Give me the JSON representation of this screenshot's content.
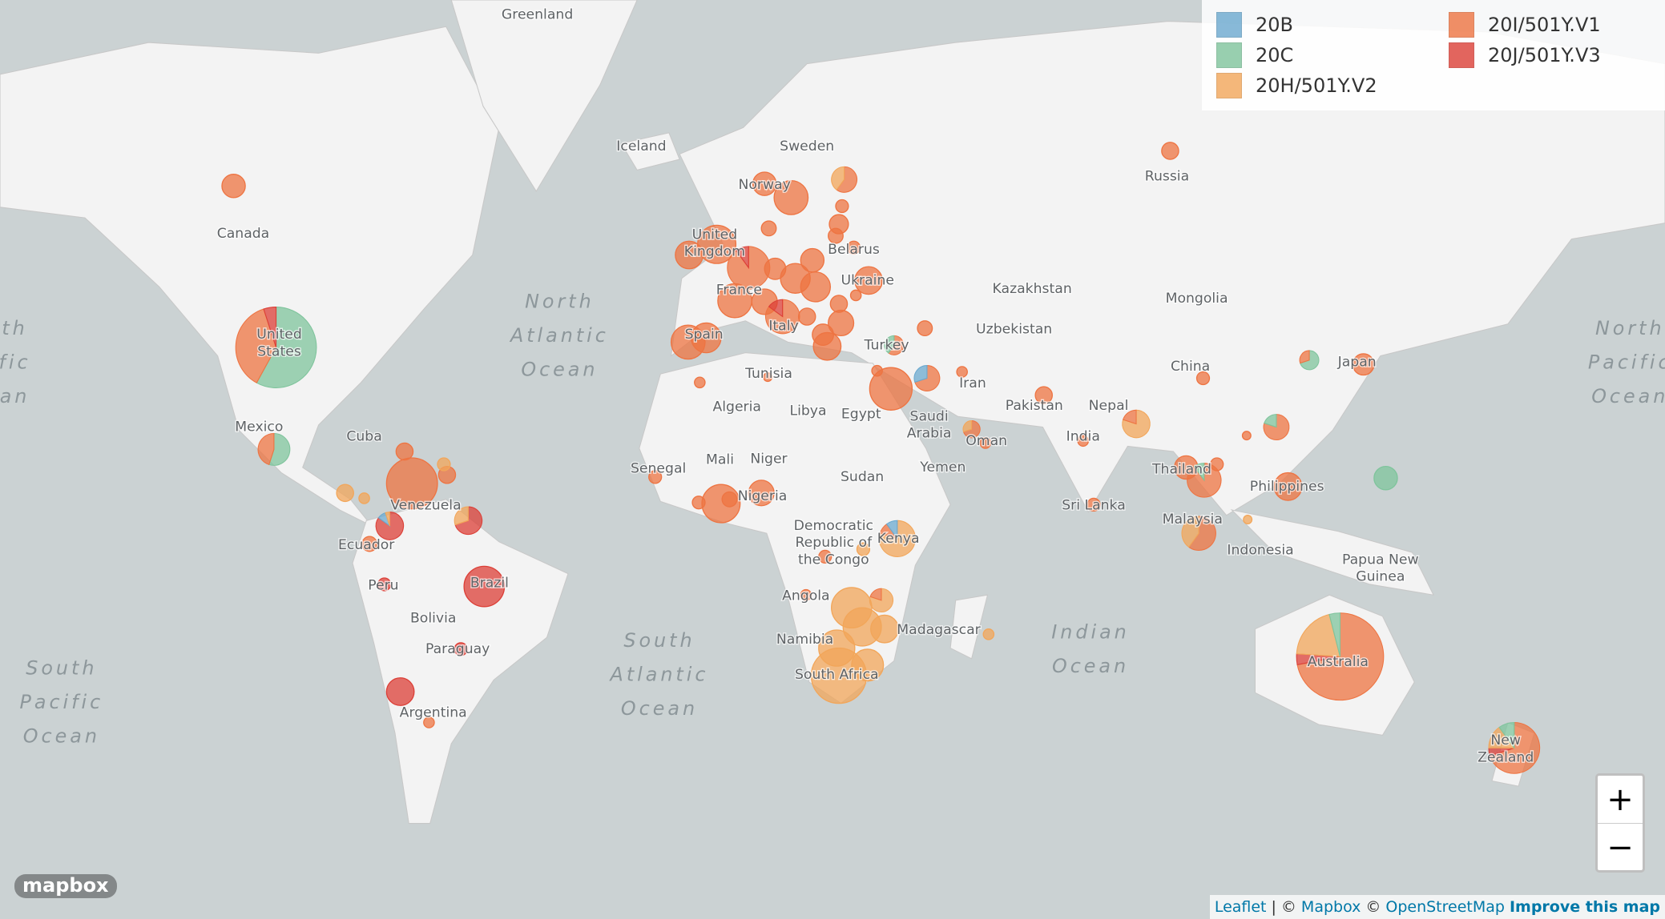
{
  "legend": {
    "items": [
      {
        "label": "20B",
        "color": "#6ba9cf"
      },
      {
        "label": "20C",
        "color": "#7fc49c"
      },
      {
        "label": "20H/501Y.V2",
        "color": "#f2a65a"
      },
      {
        "label": "20I/501Y.V1",
        "color": "#ee7442"
      },
      {
        "label": "20J/501Y.V3",
        "color": "#dc3f37"
      }
    ]
  },
  "map_labels": [
    {
      "lines": [
        "Greenland"
      ]
    },
    {
      "lines": [
        "Iceland"
      ]
    },
    {
      "lines": [
        "Sweden"
      ]
    },
    {
      "lines": [
        "Norway"
      ]
    },
    {
      "lines": [
        "Russia"
      ]
    },
    {
      "lines": [
        "Canada"
      ]
    },
    {
      "lines": [
        "United",
        "States"
      ]
    },
    {
      "lines": [
        "Mexico"
      ]
    },
    {
      "lines": [
        "Cuba"
      ]
    },
    {
      "lines": [
        "Venezuela"
      ]
    },
    {
      "lines": [
        "Ecuador"
      ]
    },
    {
      "lines": [
        "Peru"
      ]
    },
    {
      "lines": [
        "Bolivia"
      ]
    },
    {
      "lines": [
        "Brazil"
      ]
    },
    {
      "lines": [
        "Paraguay"
      ]
    },
    {
      "lines": [
        "Argentina"
      ]
    },
    {
      "lines": [
        "United",
        "Kingdom"
      ]
    },
    {
      "lines": [
        "France"
      ]
    },
    {
      "lines": [
        "Spain"
      ]
    },
    {
      "lines": [
        "Italy"
      ]
    },
    {
      "lines": [
        "Belarus"
      ]
    },
    {
      "lines": [
        "Ukraine"
      ]
    },
    {
      "lines": [
        "Turkey"
      ]
    },
    {
      "lines": [
        "Tunisia"
      ]
    },
    {
      "lines": [
        "Algeria"
      ]
    },
    {
      "lines": [
        "Libya"
      ]
    },
    {
      "lines": [
        "Egypt"
      ]
    },
    {
      "lines": [
        "Saudi",
        "Arabia"
      ]
    },
    {
      "lines": [
        "Yemen"
      ]
    },
    {
      "lines": [
        "Oman"
      ]
    },
    {
      "lines": [
        "Iran"
      ]
    },
    {
      "lines": [
        "Mali"
      ]
    },
    {
      "lines": [
        "Niger"
      ]
    },
    {
      "lines": [
        "Sudan"
      ]
    },
    {
      "lines": [
        "Senegal"
      ]
    },
    {
      "lines": [
        "Nigeria"
      ]
    },
    {
      "lines": [
        "Democratic",
        "Republic of",
        "the Congo"
      ]
    },
    {
      "lines": [
        "Kenya"
      ]
    },
    {
      "lines": [
        "Angola"
      ]
    },
    {
      "lines": [
        "Namibia"
      ]
    },
    {
      "lines": [
        "Madagascar"
      ]
    },
    {
      "lines": [
        "South Africa"
      ]
    },
    {
      "lines": [
        "Kazakhstan"
      ]
    },
    {
      "lines": [
        "Mongolia"
      ]
    },
    {
      "lines": [
        "Uzbekistan"
      ]
    },
    {
      "lines": [
        "China"
      ]
    },
    {
      "lines": [
        "Japan"
      ]
    },
    {
      "lines": [
        "Pakistan"
      ]
    },
    {
      "lines": [
        "Nepal"
      ]
    },
    {
      "lines": [
        "India"
      ]
    },
    {
      "lines": [
        "Sri Lanka"
      ]
    },
    {
      "lines": [
        "Thailand"
      ]
    },
    {
      "lines": [
        "Philippines"
      ]
    },
    {
      "lines": [
        "Malaysia"
      ]
    },
    {
      "lines": [
        "Indonesia"
      ]
    },
    {
      "lines": [
        "Papua New",
        "Guinea"
      ]
    },
    {
      "lines": [
        "Australia"
      ]
    },
    {
      "lines": [
        "New",
        "Zealand"
      ]
    },
    {
      "lines": [
        "North",
        "Atlantic",
        "Ocean"
      ]
    },
    {
      "lines": [
        "South",
        "Atlantic",
        "Ocean"
      ]
    },
    {
      "lines": [
        "Indian",
        "Ocean"
      ]
    },
    {
      "lines": [
        "South",
        "Pacific",
        "Ocean"
      ]
    },
    {
      "lines": [
        "North",
        "Pacific",
        "Ocean"
      ]
    },
    {
      "lines": [
        "th",
        "fic",
        "an"
      ]
    }
  ],
  "zoom": {
    "in": "+",
    "out": "−"
  },
  "logo": "mapbox",
  "attribution": [
    "Leaflet",
    "|",
    "©",
    "Mapbox",
    "©",
    "OpenStreetMap",
    "Improve this map"
  ]
}
